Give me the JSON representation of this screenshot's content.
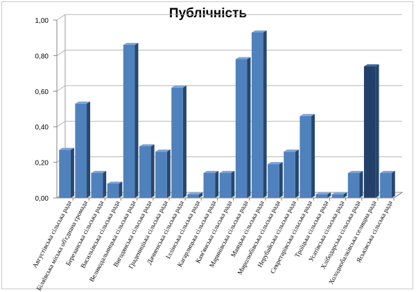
{
  "chart_data": {
    "type": "bar",
    "title": "Публічність",
    "xlabel": "",
    "ylabel": "",
    "ylim": [
      0,
      1
    ],
    "yticks": [
      "0,00",
      "0,20",
      "0,40",
      "0,60",
      "0,80",
      "1,00"
    ],
    "grid": true,
    "bar_style": "3d",
    "colors": {
      "bar_front": "#4f81bd",
      "bar_side": "#26476e",
      "bar_top": "#7ea5d6",
      "dark_bar_front": "#23406a",
      "grid": "#b5b5b5"
    },
    "categories": [
      "Августівська сільська рада",
      "Біляївська міська об'єднана громада",
      "Березанська сільська рада",
      "Васильівська сільська рада",
      "Великодальницька сільська рада",
      "Вигодянська сільська рада",
      "Градениціька сільська рада",
      "Дачненська сільська рада",
      "Іллінська сільська рада",
      "Кагарлицька сільська рада",
      "Кам'янська сільська рада",
      "Маринівська сільська рада",
      "Маяцька сільська рада",
      "Миролюбівська сільська рада",
      "Нерубайська сільська рада",
      "Секретарівська сільська рада",
      "Троїцька сільська рада",
      "Усатівська сільська рада",
      "Хлібодарська сільська рада",
      "Холоднобалківська селищна рада",
      "Яськівська сільська рада"
    ],
    "values": [
      0.27,
      0.53,
      0.14,
      0.08,
      0.86,
      0.29,
      0.26,
      0.62,
      0.02,
      0.14,
      0.14,
      0.78,
      0.93,
      0.19,
      0.26,
      0.46,
      0.02,
      0.02,
      0.14,
      0.74,
      0.14
    ],
    "dark_indices": [
      19
    ]
  }
}
